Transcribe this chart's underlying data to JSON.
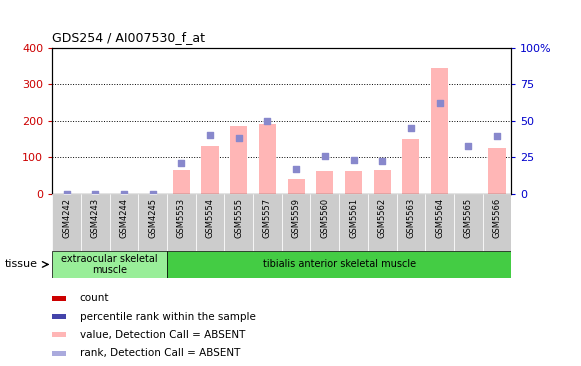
{
  "title": "GDS254 / AI007530_f_at",
  "samples": [
    "GSM4242",
    "GSM4243",
    "GSM4244",
    "GSM4245",
    "GSM5553",
    "GSM5554",
    "GSM5555",
    "GSM5557",
    "GSM5559",
    "GSM5560",
    "GSM5561",
    "GSM5562",
    "GSM5563",
    "GSM5564",
    "GSM5565",
    "GSM5566"
  ],
  "bar_values": [
    0,
    0,
    0,
    0,
    65,
    130,
    185,
    190,
    40,
    62,
    62,
    65,
    150,
    345,
    0,
    125
  ],
  "dot_values_left": [
    0,
    0,
    0,
    0,
    85,
    160,
    152,
    200,
    68,
    105,
    93,
    90,
    180,
    248,
    130,
    158
  ],
  "bar_color": "#ffb6b6",
  "dot_color": "#8888cc",
  "left_ylim": [
    0,
    400
  ],
  "right_ylim": [
    0,
    100
  ],
  "left_yticks": [
    0,
    100,
    200,
    300,
    400
  ],
  "right_yticks": [
    0,
    25,
    50,
    75,
    100
  ],
  "right_yticklabels": [
    "0",
    "25",
    "50",
    "75",
    "100%"
  ],
  "left_tick_color": "#cc0000",
  "right_tick_color": "#0000cc",
  "grid_lines": [
    100,
    200,
    300
  ],
  "tissue_groups": [
    {
      "label": "extraocular skeletal\nmuscle",
      "start": 0,
      "end": 4,
      "color": "#99ee99"
    },
    {
      "label": "tibialis anterior skeletal muscle",
      "start": 4,
      "end": 16,
      "color": "#44cc44"
    }
  ],
  "tissue_label": "tissue",
  "legend_items": [
    {
      "label": "count",
      "color": "#cc0000"
    },
    {
      "label": "percentile rank within the sample",
      "color": "#4444aa"
    },
    {
      "label": "value, Detection Call = ABSENT",
      "color": "#ffb6b6"
    },
    {
      "label": "rank, Detection Call = ABSENT",
      "color": "#aaaadd"
    }
  ],
  "background_color": "#ffffff",
  "plot_bg_color": "#ffffff",
  "xtick_bg_color": "#cccccc",
  "figsize": [
    5.81,
    3.66
  ],
  "dpi": 100
}
